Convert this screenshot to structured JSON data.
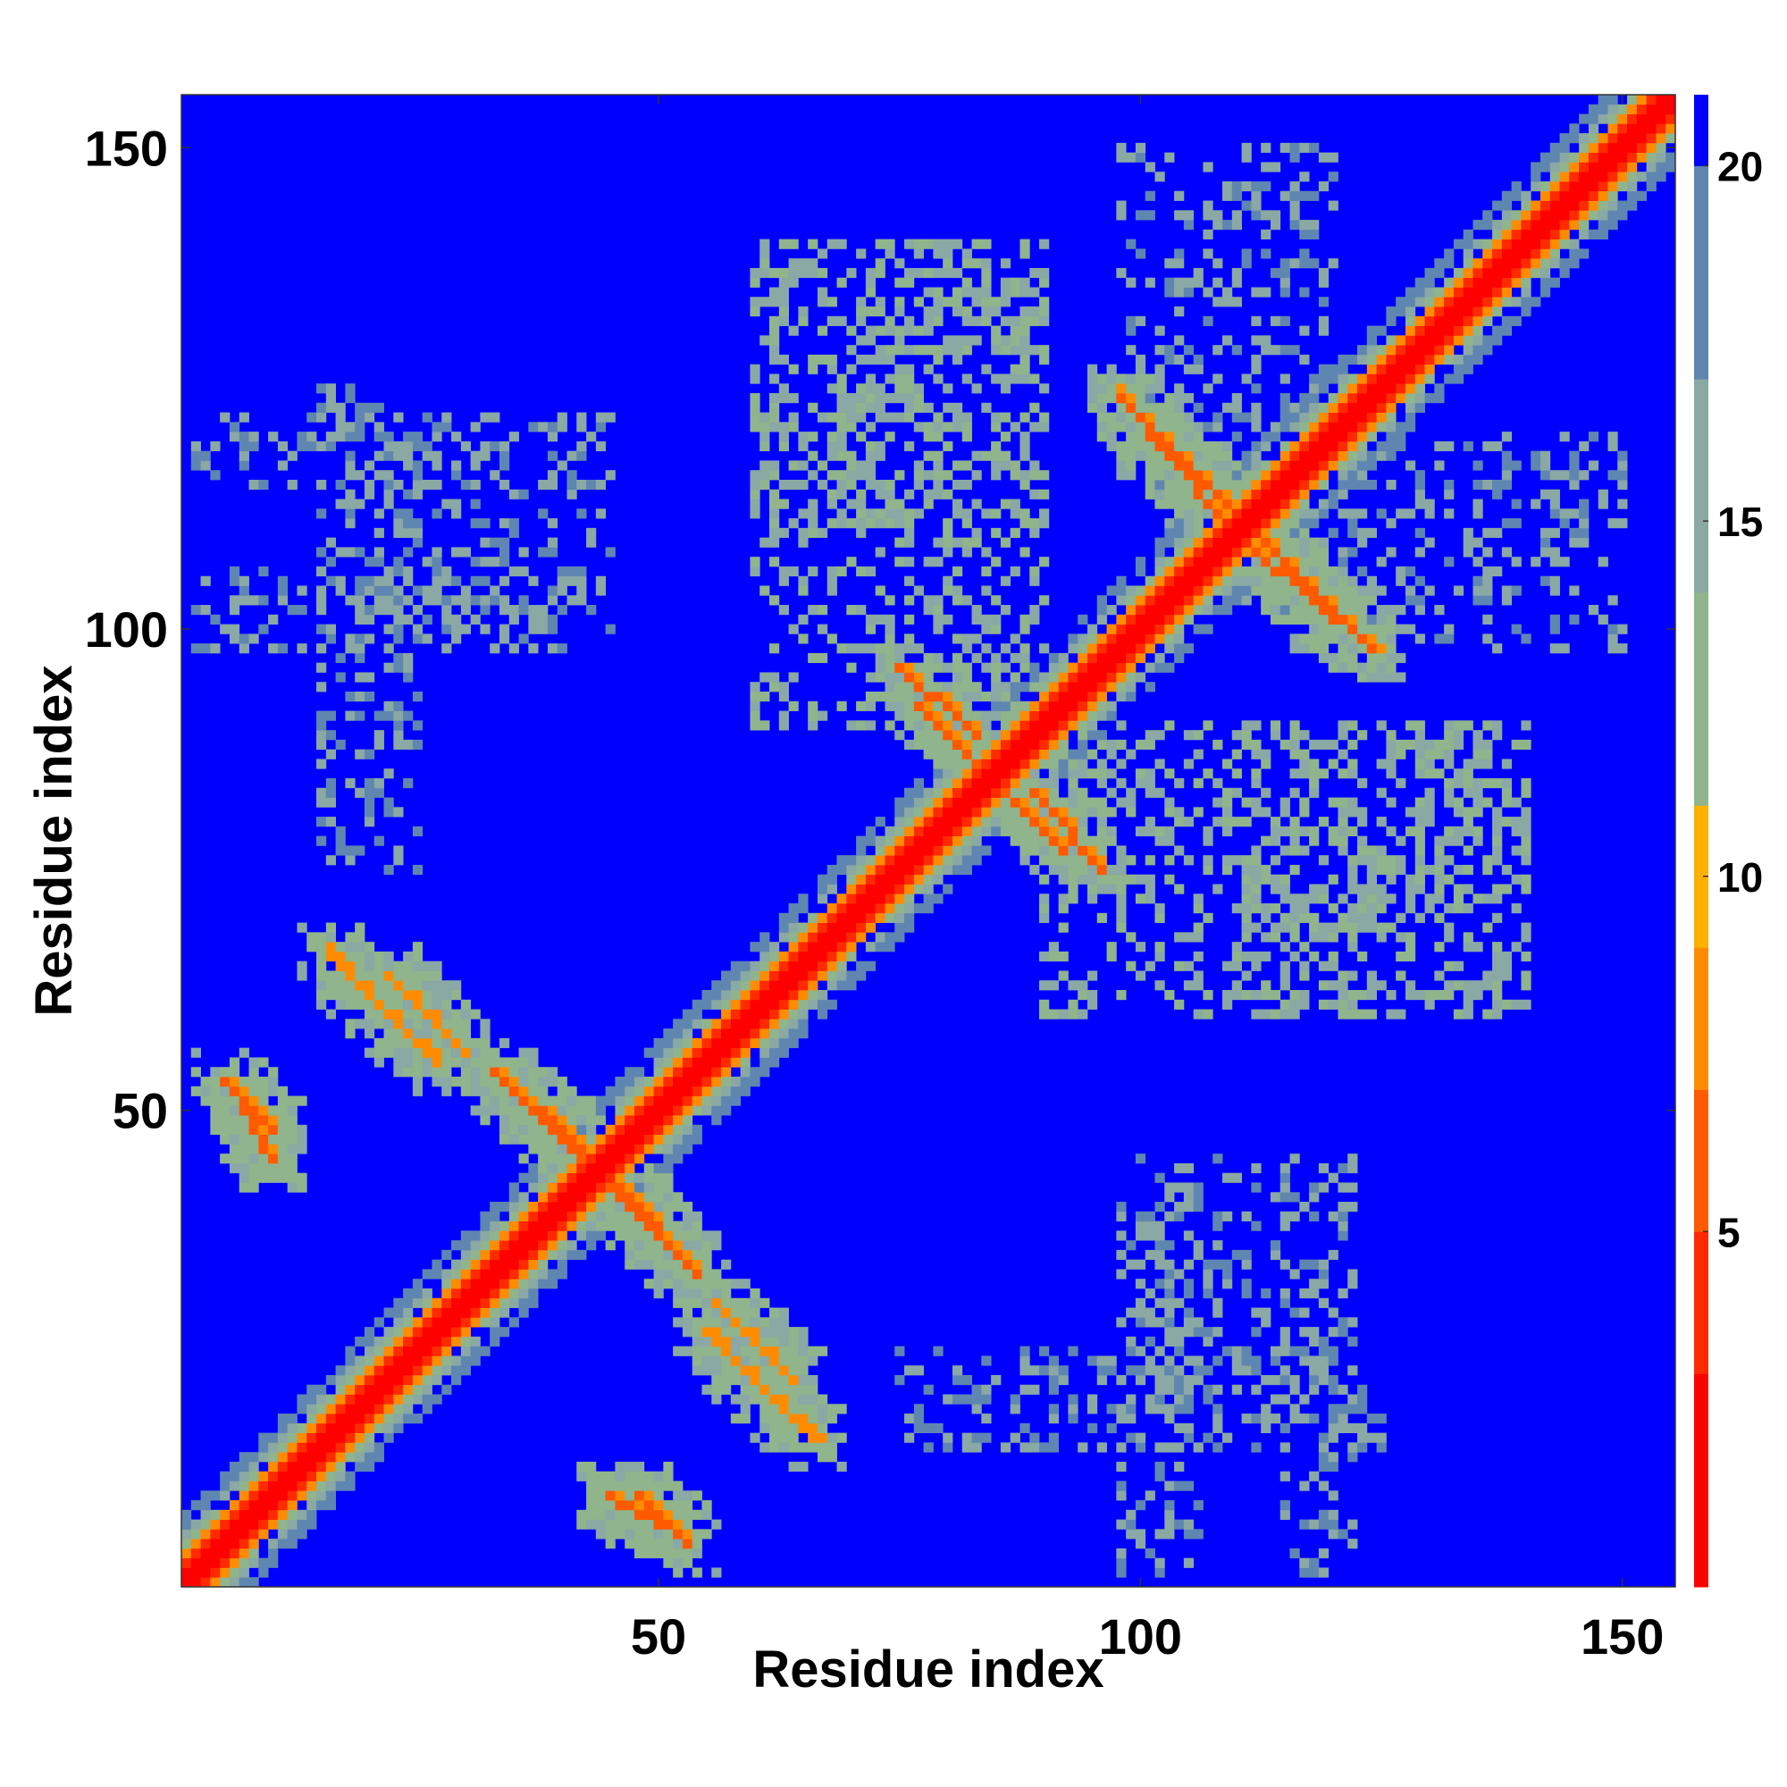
{
  "chart_data": {
    "type": "heatmap",
    "title": "",
    "xlabel": "Residue index",
    "ylabel": "Residue index",
    "x_range": [
      1,
      155
    ],
    "y_range": [
      1,
      155
    ],
    "x_ticks": [
      50,
      100,
      150
    ],
    "y_ticks": [
      50,
      100,
      150
    ],
    "colorbar": {
      "range": [
        0,
        21
      ],
      "ticks": [
        5,
        10,
        15,
        20
      ],
      "colors": [
        "#ff0000",
        "#ff2a00",
        "#ff5a00",
        "#ff8c00",
        "#ffb000",
        "#90b48c",
        "#8aa8a4",
        "#5f86b0",
        "#0000ff"
      ],
      "stops": [
        0,
        3,
        5,
        7,
        9,
        11,
        14,
        17,
        20
      ]
    },
    "background_color": "#0000ff",
    "diagonal_color": "#ff0000",
    "blocks": [
      {
        "type": "diagonal",
        "halfwidth": 7
      },
      {
        "type": "helix_pair",
        "x": [
          22,
          30
        ],
        "y": [
          56,
          64
        ],
        "value": 7
      },
      {
        "type": "helix_pair",
        "x": [
          33,
          42
        ],
        "y": [
          46,
          54
        ],
        "value": 6
      },
      {
        "type": "helix_pair",
        "x": [
          45,
          52
        ],
        "y": [
          35,
          42
        ],
        "value": 6
      },
      {
        "type": "helix_pair",
        "x": [
          55,
          66
        ],
        "y": [
          16,
          27
        ],
        "value": 7
      },
      {
        "type": "helix_pair",
        "x": [
          75,
          83
        ],
        "y": [
          89,
          96
        ],
        "value": 6
      },
      {
        "type": "helix_pair",
        "x": [
          85,
          92
        ],
        "y": [
          77,
          84
        ],
        "value": 6
      },
      {
        "type": "helix_pair",
        "x": [
          98,
          108
        ],
        "y": [
          112,
          124
        ],
        "value": 6
      },
      {
        "type": "helix_pair",
        "x": [
          113,
          124
        ],
        "y": [
          98,
          109
        ],
        "value": 6
      },
      {
        "type": "helix_pair",
        "x": [
          5,
          10
        ],
        "y": [
          48,
          53
        ],
        "value": 6
      },
      {
        "type": "helix_pair",
        "x": [
          45,
          52
        ],
        "y": [
          6,
          10
        ],
        "value": 6
      },
      {
        "type": "patch",
        "x": [
          60,
          90
        ],
        "y": [
          110,
          140
        ],
        "value": 14
      },
      {
        "type": "patch",
        "x": [
          90,
          140
        ],
        "y": [
          60,
          90
        ],
        "value": 14
      },
      {
        "type": "patch",
        "x": [
          2,
          45
        ],
        "y": [
          115,
          122
        ],
        "value": 16
      },
      {
        "type": "patch",
        "x": [
          2,
          40
        ],
        "y": [
          98,
          106
        ],
        "value": 16
      },
      {
        "type": "patch",
        "x": [
          115,
          150
        ],
        "y": [
          98,
          120
        ],
        "value": 16
      },
      {
        "type": "patch",
        "x": [
          100,
          115
        ],
        "y": [
          20,
          45
        ],
        "value": 16
      },
      {
        "type": "patch",
        "x": [
          75,
          125
        ],
        "y": [
          15,
          25
        ],
        "value": 16
      }
    ]
  }
}
